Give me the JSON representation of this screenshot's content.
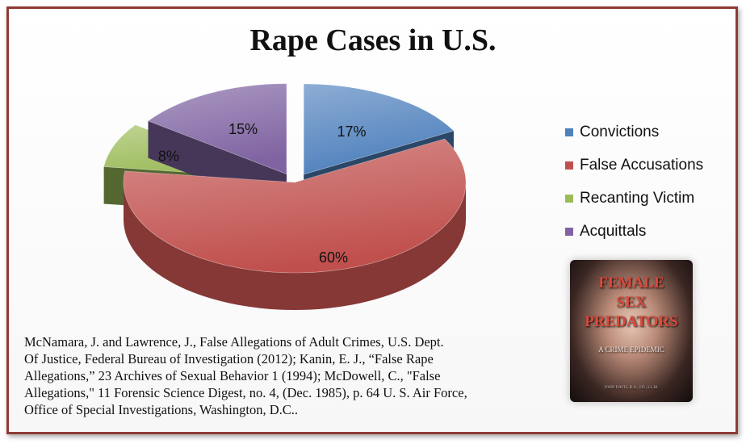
{
  "chart_data": {
    "type": "pie",
    "title": "Rape Cases in U.S.",
    "categories": [
      "Convictions",
      "False Accusations",
      "Recanting Victim",
      "Acquittals"
    ],
    "values": [
      17,
      60,
      8,
      15
    ],
    "data_labels": [
      "17%",
      "60%",
      "8%",
      "15%"
    ],
    "colors": [
      "#4f81bd",
      "#c0504d",
      "#9bbb59",
      "#8064a2"
    ],
    "legend_position": "right",
    "style": "3d-exploded"
  },
  "source_lines": [
    "McNamara, J. and Lawrence, J., False Allegations of Adult Crimes, U.S. Dept.",
    "Of Justice, Federal Bureau of Investigation (2012);  Kanin, E. J., “False Rape",
    "Allegations,” 23 Archives of Sexual Behavior 1 (1994); McDowell, C., \"False",
    "Allegations,\" 11 Forensic Science Digest, no. 4, (Dec. 1985), p. 64 U. S. Air Force,",
    "Office of Special Investigations, Washington, D.C.."
  ],
  "book_cover": {
    "title_line1": "FEMALE",
    "title_line2": "SEX",
    "title_line3": "PREDATORS",
    "subtitle": "A CRIME EPIDEMIC",
    "author": "JOHN DAVIS, B.A., J.D., LL.M."
  }
}
